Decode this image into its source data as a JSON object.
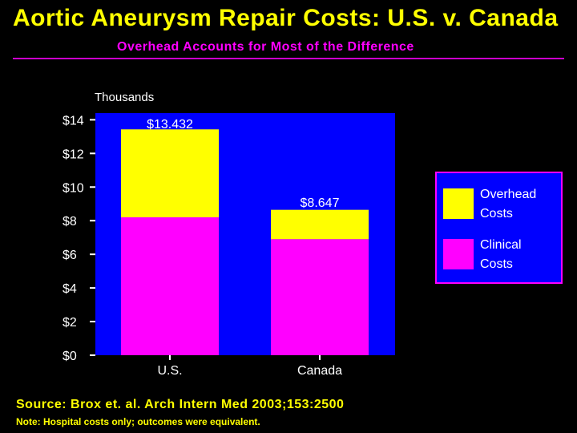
{
  "title": "Aortic Aneurysm Repair Costs: U.S. v. Canada",
  "subtitle": "Overhead Accounts for Most of the Difference",
  "source": "Source: Brox et. al. Arch Intern Med 2003;153:2500",
  "note": "Note: Hospital costs only; outcomes were equivalent.",
  "colors": {
    "background": "#000000",
    "plot_area": "#0000ff",
    "overhead": "#ffff00",
    "clinical": "#ff00ff",
    "text": "#ffffff",
    "title": "#ffff00",
    "subtitle": "#ff00ff"
  },
  "chart_data": {
    "type": "bar",
    "stacked": true,
    "ylabel": "Thousands",
    "ylim": [
      0,
      14.4
    ],
    "yticks": [
      0,
      2,
      4,
      6,
      8,
      10,
      12,
      14
    ],
    "ytick_labels": [
      "$0",
      "$2",
      "$4",
      "$6",
      "$8",
      "$10",
      "$12",
      "$14"
    ],
    "categories": [
      "U.S.",
      "Canada"
    ],
    "series": [
      {
        "name": "Clinical Costs",
        "legend_label": [
          "Clinical",
          " Costs"
        ],
        "color": "#ff00ff",
        "values": [
          8.2,
          6.9
        ]
      },
      {
        "name": "Overhead Costs",
        "legend_label": [
          "Overhead",
          "Costs"
        ],
        "color": "#ffff00",
        "values": [
          5.232,
          1.747
        ]
      }
    ],
    "totals": [
      13.432,
      8.647
    ],
    "total_labels": [
      "$13.432",
      "$8.647"
    ],
    "legend_position": "right",
    "grid": false
  }
}
